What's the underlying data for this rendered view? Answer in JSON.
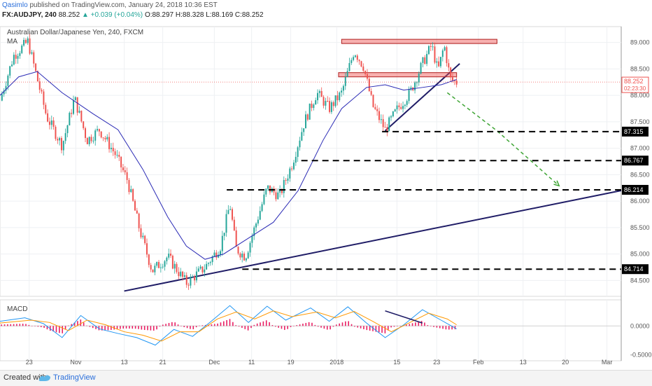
{
  "header": {
    "user": "Qasimlo",
    "published": "published on TradingView.com, January 24, 2018 10:36 EST",
    "symbol": "FX:AUDJPY, 240",
    "last": "88.252",
    "change": "▲ +0.039 (+0.04%)",
    "ohlc": "O:88.297 H:88.328 L:88.169 C:88.252"
  },
  "panel_title": "Australian Dollar/Japanese Yen, 240, FXCM",
  "ma_label": "MA",
  "macd_label": "MACD",
  "footer": {
    "created_with": "Created with",
    "brand": "TradingView"
  },
  "colors": {
    "up": "#26a69a",
    "down": "#ef5350",
    "ma": "#2a2ab5",
    "trend": "#1f1c66",
    "signal_arrow": "#3fa535",
    "macd": "#2196f3",
    "signal": "#ff9800",
    "hist": "#e91e63"
  },
  "chart_data": [
    {
      "type": "candlestick",
      "symbol": "AUDJPY",
      "timeframe": "240",
      "y_ticks": [
        84.5,
        85.0,
        85.5,
        86.0,
        86.5,
        87.0,
        87.5,
        88.0,
        88.5,
        89.0
      ],
      "y_tick_labels": [
        "84.500",
        "85.000",
        "85.500",
        "86.000",
        "86.500",
        "87.000",
        "87.500",
        "88.000",
        "88.500",
        "89.000"
      ],
      "ylim": [
        84.2,
        89.3
      ],
      "x_tick_labels": [
        "23",
        "Nov",
        "13",
        "21",
        "Dec",
        "11",
        "19",
        "2018",
        "15",
        "23",
        "Feb",
        "13",
        "20",
        "Mar"
      ],
      "last_price": {
        "value": 88.252,
        "label": "88.252",
        "countdown": "02:23:30"
      },
      "price_path": [
        [
          0,
          87.9
        ],
        [
          0.022,
          88.75
        ],
        [
          0.045,
          89.02
        ],
        [
          0.075,
          87.6
        ],
        [
          0.1,
          87.05
        ],
        [
          0.12,
          87.95
        ],
        [
          0.14,
          87.15
        ],
        [
          0.16,
          87.35
        ],
        [
          0.185,
          86.9
        ],
        [
          0.205,
          86.4
        ],
        [
          0.225,
          85.45
        ],
        [
          0.245,
          84.68
        ],
        [
          0.27,
          84.95
        ],
        [
          0.3,
          84.45
        ],
        [
          0.33,
          84.75
        ],
        [
          0.355,
          85.15
        ],
        [
          0.37,
          85.95
        ],
        [
          0.38,
          85.1
        ],
        [
          0.395,
          84.95
        ],
        [
          0.41,
          85.5
        ],
        [
          0.43,
          86.25
        ],
        [
          0.45,
          86.1
        ],
        [
          0.47,
          86.7
        ],
        [
          0.49,
          87.5
        ],
        [
          0.51,
          88.05
        ],
        [
          0.53,
          87.75
        ],
        [
          0.55,
          88.05
        ],
        [
          0.57,
          88.85
        ],
        [
          0.585,
          88.55
        ],
        [
          0.6,
          87.8
        ],
        [
          0.62,
          87.35
        ],
        [
          0.64,
          87.75
        ],
        [
          0.66,
          88.05
        ],
        [
          0.68,
          88.6
        ],
        [
          0.695,
          88.95
        ],
        [
          0.705,
          88.45
        ],
        [
          0.715,
          88.95
        ],
        [
          0.725,
          88.3
        ],
        [
          0.735,
          88.25
        ]
      ],
      "ma_path": [
        [
          0,
          88.0
        ],
        [
          0.03,
          88.35
        ],
        [
          0.06,
          88.45
        ],
        [
          0.1,
          88.05
        ],
        [
          0.15,
          87.65
        ],
        [
          0.19,
          87.35
        ],
        [
          0.23,
          86.6
        ],
        [
          0.27,
          85.7
        ],
        [
          0.3,
          85.15
        ],
        [
          0.33,
          84.9
        ],
        [
          0.36,
          85.0
        ],
        [
          0.4,
          85.3
        ],
        [
          0.44,
          85.6
        ],
        [
          0.48,
          86.2
        ],
        [
          0.52,
          87.15
        ],
        [
          0.55,
          87.75
        ],
        [
          0.59,
          88.15
        ],
        [
          0.62,
          88.2
        ],
        [
          0.65,
          88.1
        ],
        [
          0.68,
          88.15
        ],
        [
          0.71,
          88.2
        ],
        [
          0.735,
          88.3
        ]
      ],
      "resistance_zones": [
        {
          "x": [
            0.55,
            0.8
          ],
          "y": [
            88.98,
            89.06
          ]
        },
        {
          "x": [
            0.545,
            0.735
          ],
          "y": [
            88.35,
            88.43
          ]
        }
      ],
      "horizontal_levels": [
        {
          "value": 87.315,
          "label": "87.315",
          "x_start": 0.615
        },
        {
          "value": 86.767,
          "label": "86.767",
          "x_start": 0.485
        },
        {
          "value": 86.214,
          "label": "86.214",
          "x_start": 0.365
        },
        {
          "value": 84.714,
          "label": "84.714",
          "x_start": 0.39
        }
      ],
      "trendlines": [
        {
          "from": [
            0.2,
            84.3
          ],
          "to": [
            1.0,
            86.2
          ]
        },
        {
          "from": [
            0.62,
            87.33
          ],
          "to": [
            0.74,
            88.6
          ]
        }
      ],
      "projection_arrow": [
        [
          0.72,
          88.05
        ],
        [
          0.8,
          87.33
        ],
        [
          0.9,
          86.29
        ]
      ],
      "macd": {
        "ylim": [
          -0.6,
          0.45
        ],
        "tick_labels": [
          "0.0000",
          "-0.5000"
        ],
        "tick_values": [
          0,
          -0.5
        ],
        "macd_path": [
          [
            0,
            0.08
          ],
          [
            0.04,
            0.14
          ],
          [
            0.07,
            0.04
          ],
          [
            0.1,
            -0.2
          ],
          [
            0.13,
            0.18
          ],
          [
            0.16,
            -0.05
          ],
          [
            0.19,
            -0.13
          ],
          [
            0.22,
            -0.2
          ],
          [
            0.25,
            -0.33
          ],
          [
            0.28,
            -0.06
          ],
          [
            0.31,
            -0.18
          ],
          [
            0.34,
            0.08
          ],
          [
            0.37,
            0.35
          ],
          [
            0.4,
            0.06
          ],
          [
            0.43,
            0.34
          ],
          [
            0.46,
            0.1
          ],
          [
            0.5,
            0.31
          ],
          [
            0.53,
            0.08
          ],
          [
            0.56,
            0.33
          ],
          [
            0.59,
            0.05
          ],
          [
            0.62,
            -0.2
          ],
          [
            0.65,
            0.02
          ],
          [
            0.68,
            0.28
          ],
          [
            0.71,
            0.1
          ],
          [
            0.735,
            -0.05
          ]
        ],
        "signal_path": [
          [
            0,
            0.05
          ],
          [
            0.05,
            0.1
          ],
          [
            0.08,
            0.06
          ],
          [
            0.11,
            -0.08
          ],
          [
            0.14,
            0.1
          ],
          [
            0.17,
            0.02
          ],
          [
            0.2,
            -0.1
          ],
          [
            0.23,
            -0.16
          ],
          [
            0.26,
            -0.26
          ],
          [
            0.29,
            -0.1
          ],
          [
            0.32,
            -0.1
          ],
          [
            0.35,
            0.12
          ],
          [
            0.38,
            0.24
          ],
          [
            0.41,
            0.12
          ],
          [
            0.44,
            0.26
          ],
          [
            0.47,
            0.16
          ],
          [
            0.51,
            0.24
          ],
          [
            0.54,
            0.14
          ],
          [
            0.57,
            0.25
          ],
          [
            0.6,
            0.08
          ],
          [
            0.63,
            -0.1
          ],
          [
            0.66,
            0.06
          ],
          [
            0.69,
            0.22
          ],
          [
            0.72,
            0.12
          ],
          [
            0.735,
            0.02
          ]
        ],
        "divergence_line": {
          "from": [
            0.62,
            0.26
          ],
          "to": [
            0.68,
            0.05
          ]
        }
      }
    }
  ]
}
